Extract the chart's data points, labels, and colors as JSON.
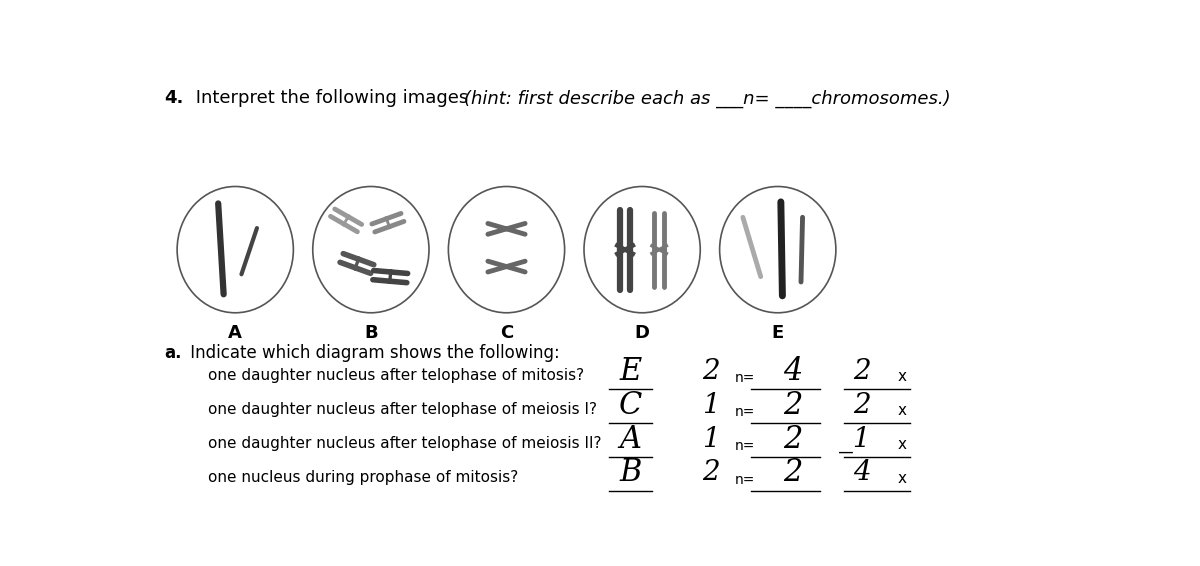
{
  "title_bold": "4.",
  "title_normal": " Interpret the following images  ",
  "title_italic": "(hint: first describe each as ___n= ____chromosomes.)",
  "bg_color": "#ffffff",
  "cell_labels": [
    "A",
    "B",
    "C",
    "D",
    "E"
  ],
  "section_a_header_bold": "a.",
  "section_a_header_normal": " Indicate which diagram shows the following:",
  "questions": [
    "one daughter nucleus after telophase of mitosis?",
    "one daughter nucleus after telophase of meiosis I?",
    "one daughter nucleus after telophase of meiosis II?",
    "one nucleus during prophase of mitosis?"
  ],
  "answers_letter": [
    "E",
    "C",
    "A",
    "B"
  ],
  "answers_num": [
    "2",
    "1",
    "1",
    "2"
  ],
  "answers_n": [
    "4",
    "2",
    "2",
    "2"
  ],
  "answers_x": [
    "2",
    "2",
    "_1",
    "4"
  ]
}
